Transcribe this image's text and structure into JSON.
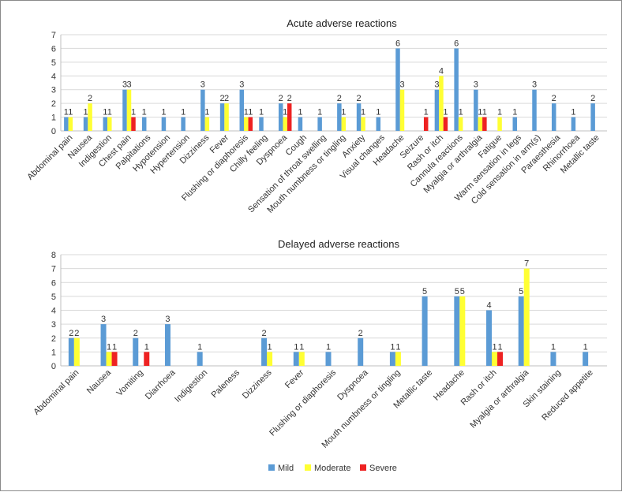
{
  "colors": {
    "mild": "#5b9bd5",
    "moderate": "#ffff33",
    "severe": "#ee2222",
    "axis": "#bfbfbf",
    "grid": "#d9d9d9"
  },
  "legend": [
    {
      "key": "mild",
      "label": "Mild"
    },
    {
      "key": "moderate",
      "label": "Moderate"
    },
    {
      "key": "severe",
      "label": "Severe"
    }
  ],
  "chart_data": [
    {
      "type": "bar",
      "title": "Acute adverse reactions",
      "ylim": [
        0,
        7
      ],
      "yticks": [
        0,
        1,
        2,
        3,
        4,
        5,
        6,
        7
      ],
      "categories": [
        "Abdominal pain",
        "Nausea",
        "Indigestion",
        "Chest pain",
        "Palpitations",
        "Hypotension",
        "Hypertension",
        "Dizziness",
        "Fever",
        "Flushing or diaphoresis",
        "Chilly feeling",
        "Dyspnoea",
        "Cough",
        "Sensation of throat swelling",
        "Mouth numbness or tingling",
        "Anxiety",
        "Visual changes",
        "Headache",
        "Seizure",
        "Rash or itch",
        "Cannula reactions",
        "Myalgia or arthralgia",
        "Fatigue",
        "Warm sensation in legs",
        "Cold sensation in arm(s)",
        "Paraesthesia",
        "Rhinorrhoea",
        "Metallic taste"
      ],
      "series": [
        {
          "name": "Mild",
          "key": "mild",
          "values": [
            1,
            1,
            1,
            3,
            1,
            1,
            1,
            3,
            2,
            3,
            1,
            2,
            1,
            1,
            2,
            2,
            1,
            6,
            null,
            3,
            6,
            3,
            null,
            1,
            3,
            2,
            1,
            2
          ]
        },
        {
          "name": "Moderate",
          "key": "moderate",
          "values": [
            1,
            2,
            1,
            3,
            null,
            null,
            null,
            1,
            2,
            1,
            null,
            1,
            null,
            null,
            1,
            1,
            null,
            3,
            null,
            4,
            1,
            1,
            1,
            null,
            null,
            null,
            null,
            null
          ]
        },
        {
          "name": "Severe",
          "key": "severe",
          "values": [
            null,
            null,
            null,
            1,
            null,
            null,
            null,
            null,
            null,
            1,
            null,
            2,
            null,
            null,
            null,
            null,
            null,
            null,
            1,
            1,
            null,
            1,
            null,
            null,
            null,
            null,
            null,
            null
          ]
        }
      ]
    },
    {
      "type": "bar",
      "title": "Delayed adverse reactions",
      "ylim": [
        0,
        8
      ],
      "yticks": [
        0,
        1,
        2,
        3,
        4,
        5,
        6,
        7,
        8
      ],
      "categories": [
        "Abdominal pain",
        "Nausea",
        "Vomiting",
        "Diarrhoea",
        "Indigestion",
        "Paleness",
        "Dizziness",
        "Fever",
        "Flushing or diaphoresis",
        "Dyspnoea",
        "Mouth numbness or tingling",
        "Metallic taste",
        "Headache",
        "Rash or itch",
        "Myalgia or arthralgia",
        "Skin staining",
        "Reduced appetite"
      ],
      "series": [
        {
          "name": "Mild",
          "key": "mild",
          "values": [
            2,
            3,
            2,
            3,
            1,
            null,
            2,
            1,
            1,
            2,
            1,
            5,
            5,
            4,
            5,
            1,
            1
          ]
        },
        {
          "name": "Moderate",
          "key": "moderate",
          "values": [
            2,
            1,
            null,
            null,
            null,
            null,
            1,
            1,
            null,
            null,
            1,
            null,
            5,
            1,
            7,
            null,
            null
          ]
        },
        {
          "name": "Severe",
          "key": "severe",
          "values": [
            null,
            1,
            1,
            null,
            null,
            null,
            null,
            null,
            null,
            null,
            null,
            null,
            null,
            1,
            null,
            null,
            null
          ]
        }
      ]
    }
  ]
}
